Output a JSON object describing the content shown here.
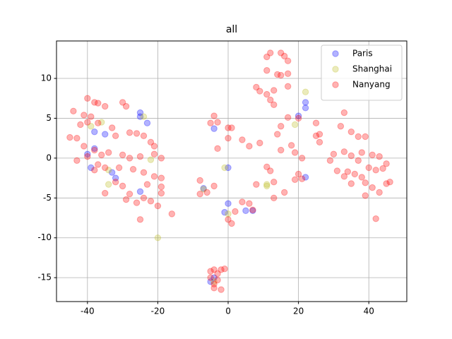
{
  "chart_data": {
    "type": "scatter",
    "title": "all",
    "xlim": [
      -48.8,
      50.8
    ],
    "ylim": [
      -18.0,
      14.7
    ],
    "xticks": [
      -40,
      -20,
      0,
      20,
      40
    ],
    "yticks": [
      -15,
      -10,
      -5,
      0,
      5,
      10
    ],
    "grid": true,
    "legend": "upper right",
    "series": [
      {
        "name": "Paris",
        "color": "#0000ff",
        "x": [
          -25,
          -25,
          -23,
          -35,
          -38,
          -40,
          -38,
          -39,
          -33,
          -32,
          -25,
          -7,
          -4,
          0,
          -1,
          5,
          7,
          -5,
          -4,
          20,
          22,
          22,
          22,
          0
        ],
        "values": [
          5.7,
          5.2,
          4.4,
          3.0,
          3.3,
          0.5,
          1.2,
          -1.2,
          -1.8,
          -2.5,
          -4.2,
          -3.8,
          3.7,
          -5.7,
          -6.8,
          -6.6,
          -6.6,
          -15.5,
          -15,
          5.3,
          7,
          6.3,
          -2.4,
          -1.2
        ]
      },
      {
        "name": "Shanghai",
        "color": "#bcbd22",
        "x": [
          -24,
          -39,
          -36,
          -34,
          -34,
          -20,
          -22,
          0,
          -1,
          11,
          11,
          22,
          19,
          -4,
          -7
        ],
        "values": [
          5.2,
          4.0,
          4.5,
          -1.5,
          -3.3,
          -10,
          -0.2,
          -7,
          -1.2,
          -3.3,
          -3.5,
          8.3,
          4.2,
          -15.5,
          -3.9
        ]
      },
      {
        "name": "Nanyang",
        "color": "#ff0000",
        "x": [
          -40,
          -38,
          -37,
          -35,
          -30,
          -29,
          -44,
          -41,
          -39,
          -42,
          -40,
          -37,
          -33,
          -32,
          -28,
          -26,
          -24,
          -22,
          -21,
          -43,
          -45,
          -41,
          -38,
          -36,
          -34,
          -30,
          -28,
          -25,
          -21,
          -19,
          -43,
          -40,
          -37,
          -35,
          -31,
          -27,
          -24,
          -21,
          -19,
          -38,
          -35,
          -30,
          -28,
          -26,
          -24,
          -22,
          -19,
          -16,
          -25,
          -29,
          -32,
          -20,
          -19,
          -23,
          -5,
          -3,
          -4,
          0,
          1,
          0,
          -3,
          4,
          6,
          9,
          -8,
          -8,
          -6,
          -4,
          4,
          1,
          2,
          0,
          7,
          -5,
          -4,
          -3,
          -2,
          -5,
          -3,
          -4,
          -2,
          -1,
          -4,
          11,
          12,
          15,
          16,
          17,
          11,
          14,
          15,
          17,
          17,
          13,
          11,
          8,
          9,
          12,
          13,
          17,
          20,
          25,
          26,
          26,
          25,
          15,
          14,
          18,
          19,
          21,
          15,
          11,
          12,
          13,
          13,
          20,
          21,
          19,
          16,
          8,
          6,
          33,
          32,
          35,
          37,
          39,
          30,
          33,
          35,
          38,
          41,
          43,
          29,
          31,
          34,
          36,
          38,
          40,
          42,
          44,
          45,
          35,
          39,
          41,
          43,
          45,
          39,
          42,
          46,
          37,
          33
        ],
        "values": [
          7.5,
          7,
          6.9,
          6.5,
          7,
          6.5,
          5.9,
          5.4,
          5.2,
          4.2,
          4.5,
          4.4,
          3.8,
          2.8,
          3.2,
          3.1,
          2.8,
          2,
          1.5,
          2.5,
          2.6,
          1.5,
          1,
          0.4,
          0.7,
          0.4,
          0,
          0.2,
          0.5,
          0,
          -0.3,
          0.2,
          -0.8,
          -1.2,
          -1.2,
          -1.4,
          -1.8,
          -2.3,
          -2.5,
          -1.5,
          -4.4,
          -3.5,
          -4.5,
          -5.6,
          -5,
          -5.4,
          -4.4,
          -7,
          -7.7,
          -5.2,
          -3,
          -6,
          -3.6,
          -3.3,
          4.4,
          4.5,
          5.3,
          3.8,
          3.8,
          2.5,
          1.2,
          2.3,
          1.5,
          1.9,
          -2.8,
          -4.5,
          -4.3,
          -3.5,
          -5.5,
          -8.2,
          -6.7,
          -7.7,
          -6.5,
          -14.2,
          -14,
          -14.5,
          -14,
          -15,
          -15.3,
          -16.3,
          -16.5,
          -13.9,
          -15.8,
          12.7,
          13.2,
          13.2,
          12.8,
          12.2,
          11,
          10.5,
          10.4,
          10.6,
          9,
          8.5,
          8,
          8.9,
          8.4,
          7.3,
          6.7,
          5.1,
          5,
          4.4,
          3,
          2,
          2.8,
          4,
          3,
          1.6,
          0.7,
          0,
          1,
          -1.1,
          -1.6,
          -3,
          -5,
          -2,
          -2.6,
          -2.7,
          -4.3,
          -3.3,
          -5.7,
          5.7,
          4,
          3.3,
          2.7,
          2.7,
          0.5,
          0.8,
          0.3,
          0.7,
          0.4,
          0.2,
          -0.3,
          -1.6,
          -1.7,
          -2,
          -2.4,
          -1.2,
          -1.5,
          -1.3,
          -0.7,
          -3.2,
          -3.1,
          -3.7,
          -4.3,
          -3.2,
          -4.7,
          -7.6,
          -3,
          -0.3,
          -2.3
        ]
      }
    ]
  }
}
